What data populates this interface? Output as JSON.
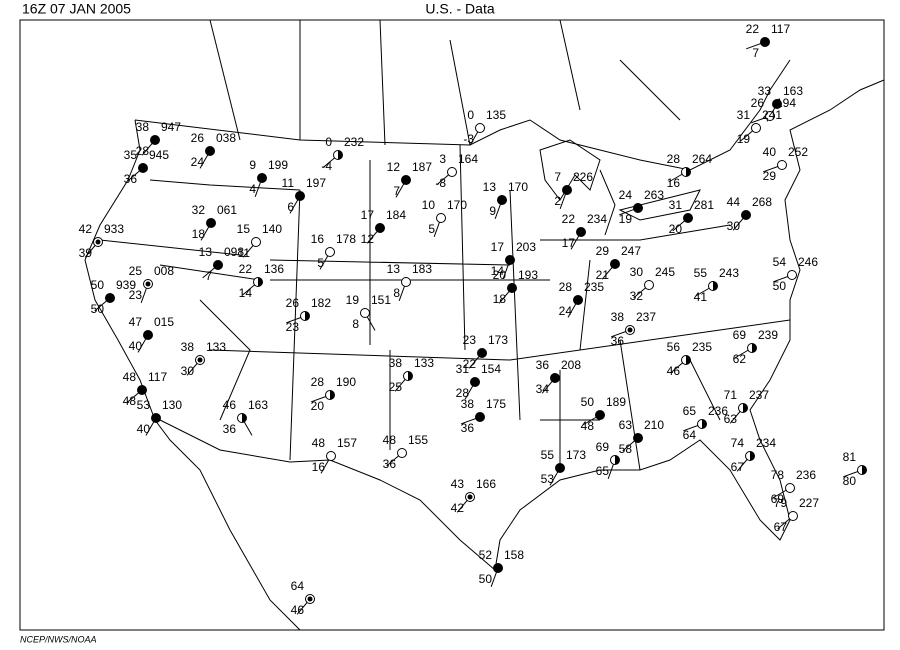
{
  "header": {
    "time": "16Z   07 JAN 2005",
    "title": "U.S. -  Data"
  },
  "footer": "NCEP/NWS/NOAA",
  "stations": [
    {
      "temp": 22,
      "pressure": "117",
      "dew": 7
    },
    {
      "temp": 33,
      "pressure": "163"
    },
    {
      "temp": 26,
      "pressure": "194"
    },
    {
      "temp": 31,
      "pressure": "241",
      "dew": 19
    },
    {
      "temp": 40,
      "pressure": "252",
      "dew": 29
    },
    {
      "temp": 28,
      "pressure": "264",
      "dew": 16
    },
    {
      "temp": 24,
      "pressure": "263",
      "dew": 19
    },
    {
      "temp": 31,
      "pressure": "281",
      "dew": 20
    },
    {
      "temp": 44,
      "pressure": "268",
      "dew": 30
    },
    {
      "temp": 7,
      "pressure": "226",
      "dew": 2
    },
    {
      "temp": 22,
      "pressure": "234",
      "dew": 17
    },
    {
      "temp": 29,
      "pressure": "247",
      "dew": 21
    },
    {
      "temp": 30,
      "pressure": "245",
      "dew": 32
    },
    {
      "temp": 55,
      "pressure": "243",
      "dew": 41
    },
    {
      "temp": 54,
      "pressure": "246",
      "dew": 50
    },
    {
      "temp": 38,
      "pressure": "237",
      "dew": 36
    },
    {
      "temp": 56,
      "pressure": "235",
      "dew": 46
    },
    {
      "temp": 69,
      "pressure": "239",
      "dew": 62
    },
    {
      "temp": 71,
      "pressure": "237",
      "dew": 63
    },
    {
      "temp": 65,
      "pressure": "236",
      "dew": 64
    },
    {
      "temp": 74,
      "pressure": "234",
      "dew": 67
    },
    {
      "temp": 78,
      "pressure": "236",
      "dew": 69
    },
    {
      "temp": 79,
      "pressure": "227",
      "dew": 67
    },
    {
      "temp": 81,
      "dew": 80
    },
    {
      "temp": 50,
      "pressure": "189",
      "dew": 48
    },
    {
      "temp": 63,
      "pressure": "210",
      "dew": 58
    },
    {
      "temp": 69,
      "dew": 65
    },
    {
      "temp": 55,
      "pressure": "173",
      "dew": 53
    },
    {
      "temp": 36,
      "pressure": "208",
      "dew": 34
    },
    {
      "temp": 28,
      "pressure": "235",
      "dew": 24
    },
    {
      "temp": 17,
      "pressure": "203",
      "dew": 14
    },
    {
      "temp": 20,
      "pressure": "193",
      "dew": 18
    },
    {
      "temp": 13,
      "pressure": "170",
      "dew": 9
    },
    {
      "temp": 12,
      "pressure": "187",
      "dew": 7
    },
    {
      "temp": 3,
      "pressure": "164",
      "dew": -8
    },
    {
      "temp": 0,
      "pressure": "135",
      "dew": -3
    },
    {
      "temp": 10,
      "pressure": "170",
      "dew": 5
    },
    {
      "temp": 17,
      "pressure": "184",
      "dew": 12
    },
    {
      "temp": 16,
      "pressure": "178",
      "dew": 5
    },
    {
      "temp": 13,
      "pressure": "183",
      "dew": 8
    },
    {
      "temp": 19,
      "pressure": "151",
      "dew": 8
    },
    {
      "temp": 26,
      "pressure": "182",
      "dew": 23
    },
    {
      "temp": 22,
      "pressure": "136",
      "dew": 14
    },
    {
      "temp": 15,
      "pressure": "140",
      "dew": 11
    },
    {
      "temp": 32,
      "pressure": "061",
      "dew": 18
    },
    {
      "temp": 13,
      "pressure": "098",
      "dew": 7
    },
    {
      "temp": 25,
      "pressure": "008",
      "dew": 23
    },
    {
      "temp": 42,
      "pressure": "933",
      "dew": 39
    },
    {
      "temp": 50,
      "pressure": "939",
      "dew": 50
    },
    {
      "temp": 47,
      "pressure": "015",
      "dew": 40
    },
    {
      "temp": 38,
      "pressure": "133",
      "dew": 30
    },
    {
      "temp": 48,
      "pressure": "117",
      "dew": 48
    },
    {
      "temp": 53,
      "pressure": "130",
      "dew": 40
    },
    {
      "temp": 46,
      "pressure": "163",
      "dew": 36
    },
    {
      "temp": 48,
      "pressure": "157",
      "dew": 16
    },
    {
      "temp": 28,
      "pressure": "190",
      "dew": 20
    },
    {
      "temp": 38,
      "pressure": "133",
      "dew": 25
    },
    {
      "temp": 48,
      "pressure": "155",
      "dew": 36
    },
    {
      "temp": 23,
      "pressure": "173",
      "dew": 22
    },
    {
      "temp": 31,
      "pressure": "154",
      "dew": 28
    },
    {
      "temp": 38,
      "pressure": "175",
      "dew": 36
    },
    {
      "temp": 43,
      "pressure": "166",
      "dew": 42
    },
    {
      "temp": 52,
      "pressure": "158",
      "dew": 50
    },
    {
      "temp": 64,
      "dew": 46
    },
    {
      "temp": 9,
      "pressure": "199",
      "dew": 4
    },
    {
      "temp": 11,
      "pressure": "197",
      "dew": 6
    },
    {
      "temp": 0,
      "pressure": "232",
      "dew": -4
    },
    {
      "temp": 26,
      "pressure": "038",
      "dew": 24
    },
    {
      "temp": 38,
      "pressure": "947",
      "dew": 28
    },
    {
      "temp": 35,
      "pressure": "945",
      "dew": 36
    }
  ]
}
